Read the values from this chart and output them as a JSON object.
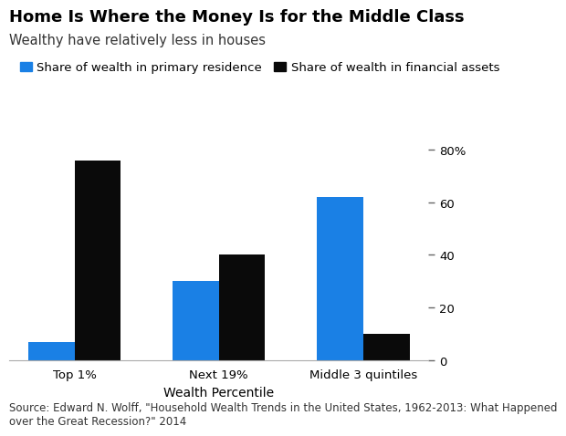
{
  "title": "Home Is Where the Money Is for the Middle Class",
  "subtitle": "Wealthy have relatively less in houses",
  "legend_blue": "Share of wealth in primary residence",
  "legend_black": "Share of wealth in financial assets",
  "categories": [
    "Top 1%",
    "Next 19%",
    "Middle 3 quintiles"
  ],
  "blue_values": [
    7,
    30,
    62
  ],
  "black_values": [
    76,
    40,
    10
  ],
  "blue_color": "#1a80e5",
  "black_color": "#0a0a0a",
  "xlabel": "Wealth Percentile",
  "yticks": [
    0,
    20,
    40,
    60,
    80
  ],
  "ylim": [
    0,
    88
  ],
  "source": "Source: Edward N. Wolff, \"Household Wealth Trends in the United States, 1962-2013: What Happened\nover the Great Recession?\" 2014",
  "bar_width": 0.32,
  "title_fontsize": 13,
  "subtitle_fontsize": 10.5,
  "legend_fontsize": 9.5,
  "tick_fontsize": 9.5,
  "xlabel_fontsize": 10,
  "source_fontsize": 8.5
}
